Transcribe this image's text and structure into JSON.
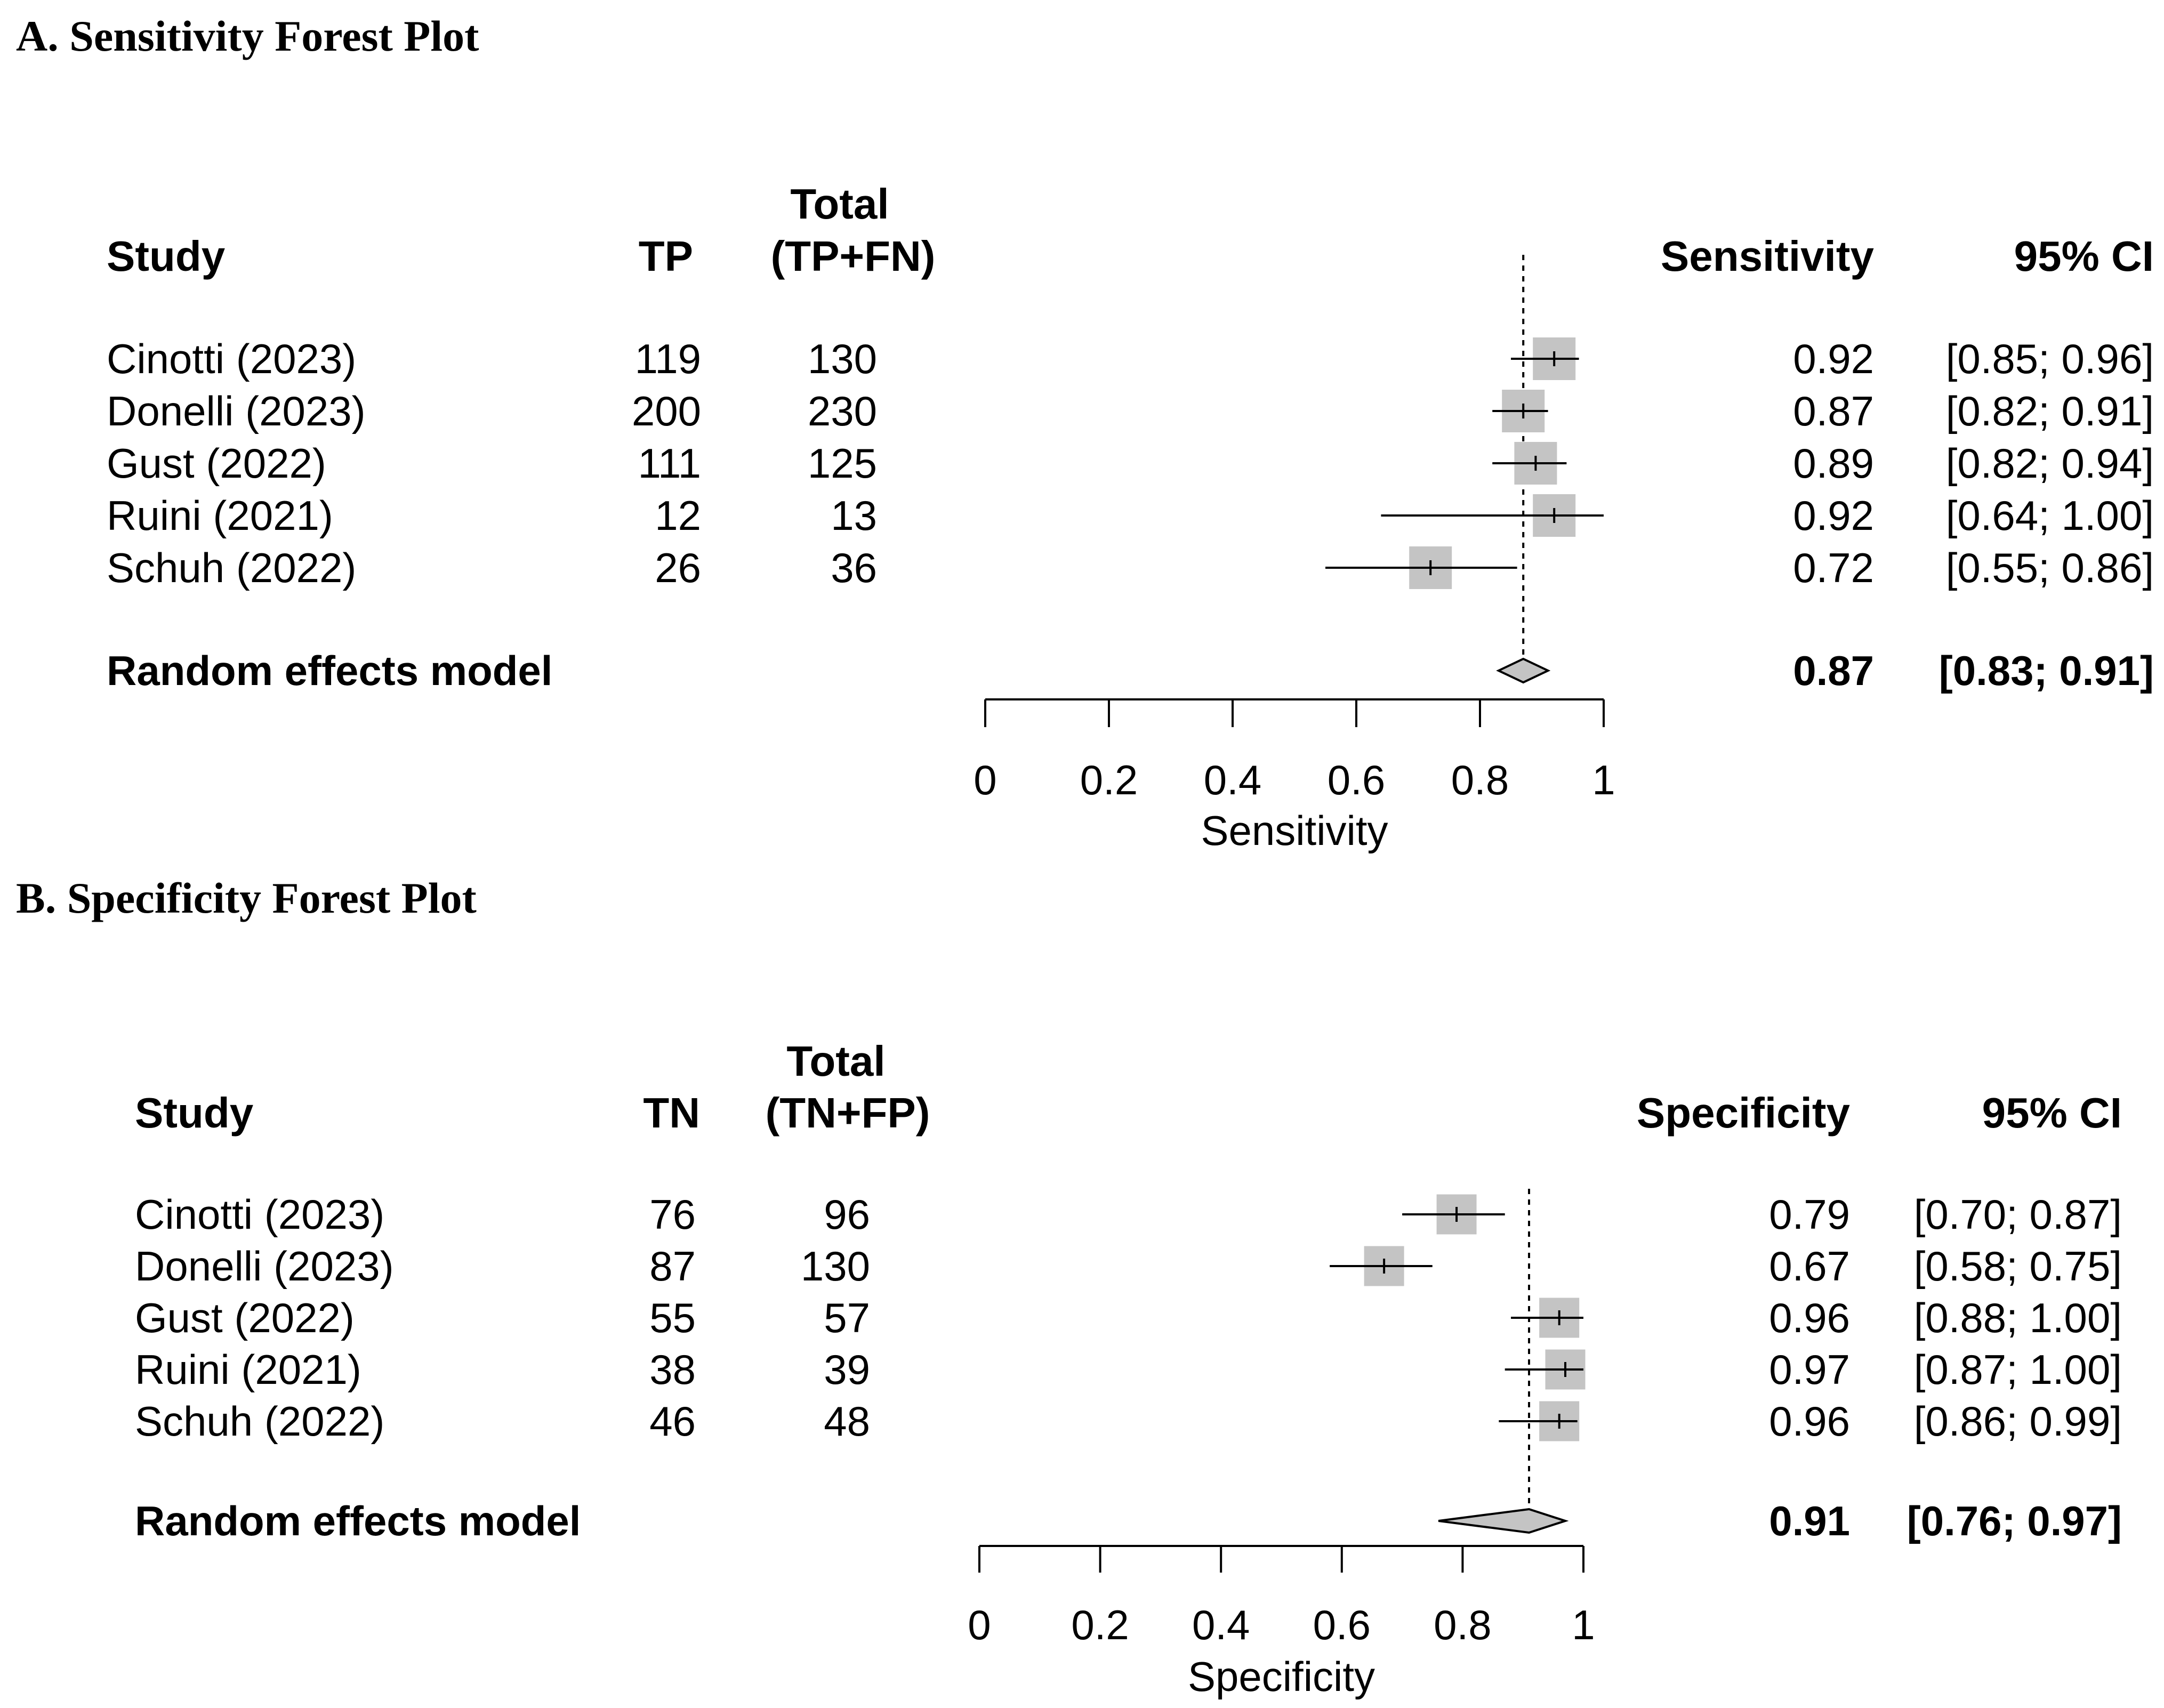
{
  "figure": {
    "panels": [
      {
        "title": "A. Sensitivity Forest Plot",
        "headers": {
          "study": "Study",
          "events": "TP",
          "total_line1": "Total",
          "total_line2": "(TP+FN)",
          "estimate": "Sensitivity",
          "ci": "95% CI"
        }
      },
      {
        "title": "B. Specificity Forest Plot",
        "headers": {
          "study": "Study",
          "events": "TN",
          "total_line1": "Total",
          "total_line2": "(TN+FP)",
          "estimate": "Specificity",
          "ci": "95% CI"
        }
      }
    ]
  },
  "chart_data": [
    {
      "type": "forest",
      "title": "A. Sensitivity Forest Plot",
      "xlabel": "Sensitivity",
      "xlim": [
        0,
        1
      ],
      "ticks": [
        "0",
        "0.2",
        "0.4",
        "0.6",
        "0.8",
        "1"
      ],
      "reference_line": 0.87,
      "studies": [
        {
          "study": "Cinotti (2023)",
          "events": "119",
          "total": "130",
          "est_label": "0.92",
          "ci_label": "[0.85; 0.96]",
          "est": 0.92,
          "lo": 0.85,
          "hi": 0.96,
          "weight": 1.0
        },
        {
          "study": "Donelli (2023)",
          "events": "200",
          "total": "230",
          "est_label": "0.87",
          "ci_label": "[0.82; 0.91]",
          "est": 0.87,
          "lo": 0.82,
          "hi": 0.91,
          "weight": 1.0
        },
        {
          "study": "Gust (2022)",
          "events": "111",
          "total": "125",
          "est_label": "0.89",
          "ci_label": "[0.82; 0.94]",
          "est": 0.89,
          "lo": 0.82,
          "hi": 0.94,
          "weight": 1.0
        },
        {
          "study": "Ruini (2021)",
          "events": "12",
          "total": "13",
          "est_label": "0.92",
          "ci_label": "[0.64; 1.00]",
          "est": 0.92,
          "lo": 0.64,
          "hi": 1.0,
          "weight": 1.0
        },
        {
          "study": "Schuh (2022)",
          "events": "26",
          "total": "36",
          "est_label": "0.72",
          "ci_label": "[0.55; 0.86]",
          "est": 0.72,
          "lo": 0.55,
          "hi": 0.86,
          "weight": 1.0
        }
      ],
      "pooled": {
        "label": "Random effects model",
        "est_label": "0.87",
        "ci_label": "[0.83; 0.91]",
        "est": 0.87,
        "lo": 0.83,
        "hi": 0.91
      }
    },
    {
      "type": "forest",
      "title": "B. Specificity Forest Plot",
      "xlabel": "Specificity",
      "xlim": [
        0,
        1
      ],
      "ticks": [
        "0",
        "0.2",
        "0.4",
        "0.6",
        "0.8",
        "1"
      ],
      "reference_line": 0.91,
      "studies": [
        {
          "study": "Cinotti (2023)",
          "events": "76",
          "total": "96",
          "est_label": "0.79",
          "ci_label": "[0.70; 0.87]",
          "est": 0.79,
          "lo": 0.7,
          "hi": 0.87,
          "weight": 1.0
        },
        {
          "study": "Donelli (2023)",
          "events": "87",
          "total": "130",
          "est_label": "0.67",
          "ci_label": "[0.58; 0.75]",
          "est": 0.67,
          "lo": 0.58,
          "hi": 0.75,
          "weight": 1.0
        },
        {
          "study": "Gust (2022)",
          "events": "55",
          "total": "57",
          "est_label": "0.96",
          "ci_label": "[0.88; 1.00]",
          "est": 0.96,
          "lo": 0.88,
          "hi": 1.0,
          "weight": 1.0
        },
        {
          "study": "Ruini (2021)",
          "events": "38",
          "total": "39",
          "est_label": "0.97",
          "ci_label": "[0.87; 1.00]",
          "est": 0.97,
          "lo": 0.87,
          "hi": 1.0,
          "weight": 1.0
        },
        {
          "study": "Schuh (2022)",
          "events": "46",
          "total": "48",
          "est_label": "0.96",
          "ci_label": "[0.86; 0.99]",
          "est": 0.96,
          "lo": 0.86,
          "hi": 0.99,
          "weight": 1.0
        }
      ],
      "pooled": {
        "label": "Random effects model",
        "est_label": "0.91",
        "ci_label": "[0.76; 0.97]",
        "est": 0.91,
        "lo": 0.76,
        "hi": 0.97
      }
    }
  ]
}
